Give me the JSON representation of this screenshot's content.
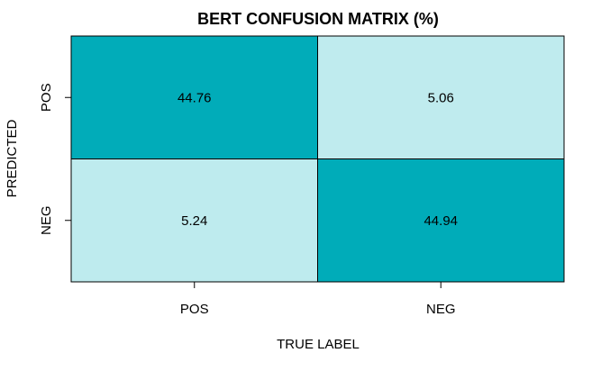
{
  "chart_data": {
    "type": "heatmap",
    "title": "BERT CONFUSION MATRIX (%)",
    "xlabel": "TRUE LABEL",
    "ylabel": "PREDICTED",
    "x_categories": [
      "POS",
      "NEG"
    ],
    "y_categories": [
      "POS",
      "NEG"
    ],
    "values": [
      [
        44.76,
        5.06
      ],
      [
        5.24,
        44.94
      ]
    ],
    "value_labels": [
      [
        "44.76",
        "5.06"
      ],
      [
        "5.24",
        "44.94"
      ]
    ],
    "colors": {
      "high": "#00acb9",
      "low": "#bfebee",
      "border": "#000000"
    },
    "grid": false,
    "legend": "none"
  }
}
